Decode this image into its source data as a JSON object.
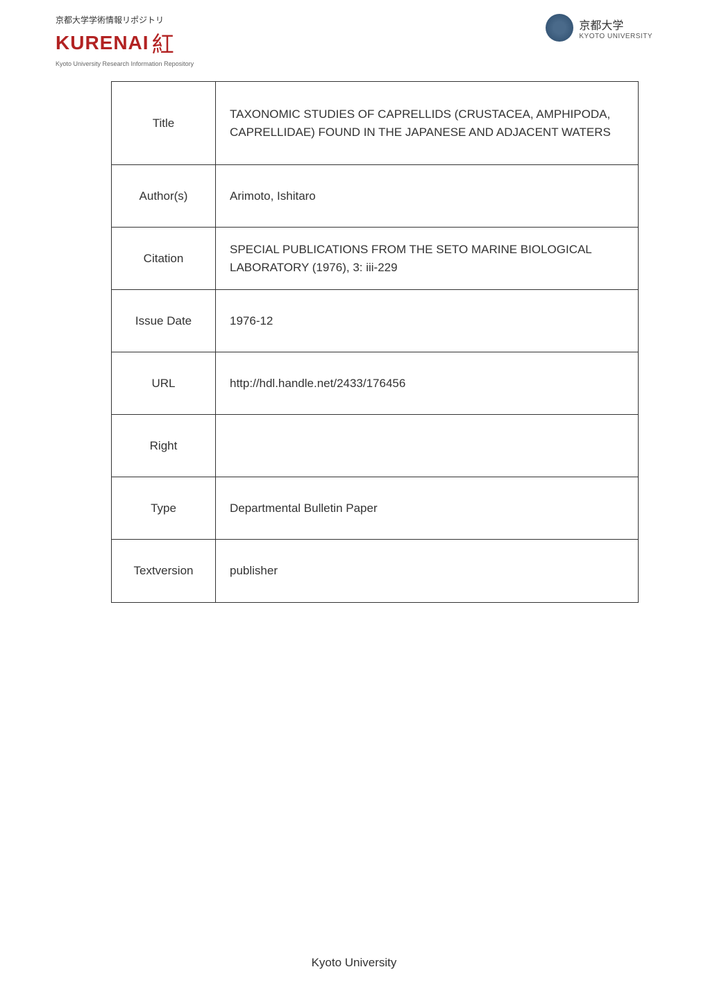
{
  "header": {
    "logo_left_top": "京都大学学術情報リポジトリ",
    "logo_left_main": "KURENAI",
    "logo_left_kanji": "紅",
    "logo_left_bottom": "Kyoto University Research Information Repository",
    "univ_jp": "京都大学",
    "univ_en": "KYOTO UNIVERSITY"
  },
  "table": {
    "rows": [
      {
        "label": "Title",
        "value": "TAXONOMIC STUDIES OF CAPRELLIDS (CRUSTACEA, AMPHIPODA, CAPRELLIDAE) FOUND IN THE JAPANESE AND ADJACENT WATERS"
      },
      {
        "label": "Author(s)",
        "value": "Arimoto, Ishitaro"
      },
      {
        "label": "Citation",
        "value": "SPECIAL PUBLICATIONS FROM THE SETO MARINE BIOLOGICAL LABORATORY (1976), 3: iii-229"
      },
      {
        "label": "Issue Date",
        "value": "1976-12"
      },
      {
        "label": "URL",
        "value": "http://hdl.handle.net/2433/176456"
      },
      {
        "label": "Right",
        "value": ""
      },
      {
        "label": "Type",
        "value": "Departmental Bulletin Paper"
      },
      {
        "label": "Textversion",
        "value": "publisher"
      }
    ]
  },
  "footer": "Kyoto University",
  "colors": {
    "kurenai_red": "#b22222",
    "text_dark": "#333333",
    "text_gray": "#666666",
    "border": "#333333",
    "background": "#ffffff"
  }
}
